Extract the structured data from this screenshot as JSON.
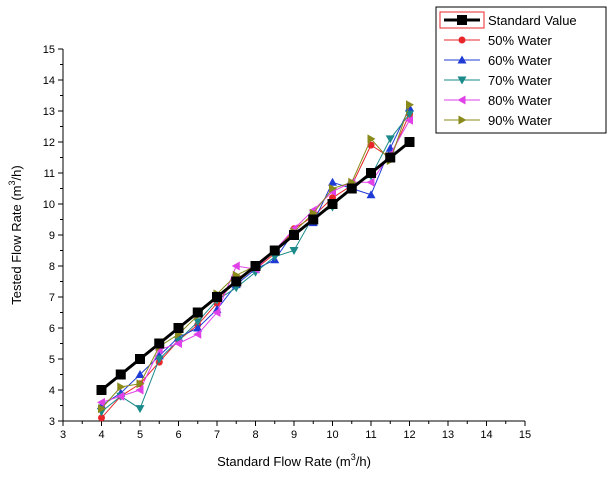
{
  "chart_data": {
    "type": "line",
    "xlabel": "Standard Flow Rate (m",
    "xlabel_sup": "3",
    "xlabel_end": "/h)",
    "ylabel": "Tested Flow Rate (m",
    "ylabel_sup": "3",
    "ylabel_end": "/h)",
    "xlim": [
      3,
      15
    ],
    "ylim": [
      3,
      15
    ],
    "xticks": [
      "3",
      "4",
      "5",
      "6",
      "7",
      "8",
      "9",
      "10",
      "11",
      "12",
      "13",
      "14",
      "15"
    ],
    "yticks": [
      "3",
      "4",
      "5",
      "6",
      "7",
      "8",
      "9",
      "10",
      "11",
      "12",
      "13",
      "14",
      "15"
    ],
    "grid": false,
    "legend_position": "top-right",
    "x": [
      4,
      4.5,
      5,
      5.5,
      6,
      6.5,
      7,
      7.5,
      8,
      8.5,
      9,
      9.5,
      10,
      10.5,
      11,
      11.5,
      12
    ],
    "series": [
      {
        "name": "Standard Value",
        "marker": "square",
        "color": "#000000",
        "values": [
          4.0,
          4.5,
          5.0,
          5.5,
          6.0,
          6.5,
          7.0,
          7.5,
          8.0,
          8.5,
          9.0,
          9.5,
          10.0,
          10.5,
          11.0,
          11.5,
          12.0
        ]
      },
      {
        "name": "50% Water",
        "marker": "circle",
        "color": "#e8262a",
        "values": [
          3.1,
          3.8,
          4.2,
          4.9,
          5.6,
          6.1,
          6.8,
          7.6,
          7.9,
          8.4,
          9.2,
          9.6,
          10.2,
          10.6,
          11.9,
          11.5,
          12.9
        ]
      },
      {
        "name": "60% Water",
        "marker": "triangle-up",
        "color": "#1f3bd6",
        "values": [
          3.5,
          3.9,
          4.5,
          5.1,
          5.7,
          6.0,
          6.6,
          7.4,
          7.9,
          8.2,
          9.1,
          9.4,
          10.7,
          10.5,
          10.3,
          11.8,
          13.1
        ]
      },
      {
        "name": "70% Water",
        "marker": "triangle-down",
        "color": "#1a8a8a",
        "values": [
          3.3,
          3.8,
          3.4,
          5.0,
          5.6,
          6.2,
          6.9,
          7.3,
          7.8,
          8.3,
          8.5,
          9.6,
          9.9,
          10.6,
          10.9,
          12.1,
          12.9
        ]
      },
      {
        "name": "80% Water",
        "marker": "triangle-left",
        "color": "#e040e8",
        "values": [
          3.6,
          3.8,
          4.0,
          5.3,
          5.5,
          5.8,
          6.5,
          8.0,
          7.9,
          8.5,
          9.2,
          9.8,
          10.4,
          10.7,
          10.7,
          11.6,
          12.7
        ]
      },
      {
        "name": "90% Water",
        "marker": "triangle-right",
        "color": "#8a8a1a",
        "values": [
          3.4,
          4.1,
          4.2,
          5.4,
          5.8,
          6.4,
          7.1,
          7.7,
          8.0,
          8.5,
          9.1,
          9.7,
          10.5,
          10.7,
          12.1,
          11.4,
          13.2
        ]
      }
    ]
  }
}
